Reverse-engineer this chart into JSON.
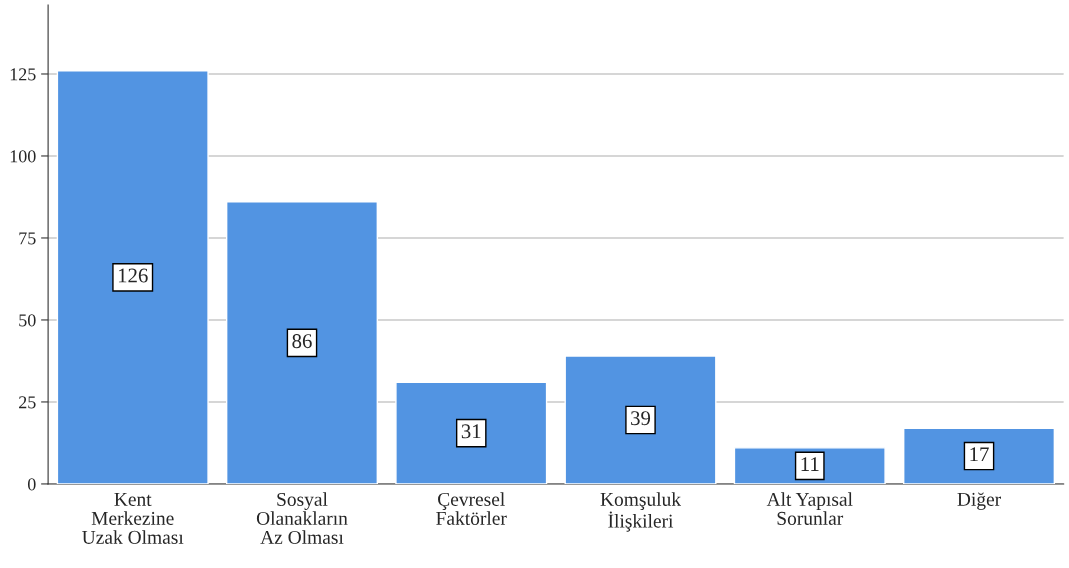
{
  "chart_data": {
    "type": "bar",
    "categories": [
      "Kent\nMerkezine\nUzak Olması",
      "Sosyal\nOlanakların\nAz Olması",
      "Çevresel\nFaktörler",
      "Komşuluk\nİlişkileri",
      "Alt Yapısal\nSorunlar",
      "Diğer"
    ],
    "values": [
      126,
      86,
      31,
      39,
      11,
      17
    ],
    "color": "#5294e2",
    "ylim": [
      0,
      146
    ],
    "yticks": [
      0,
      25,
      50,
      75,
      100,
      125
    ],
    "grid": "y",
    "data_labels": true
  }
}
